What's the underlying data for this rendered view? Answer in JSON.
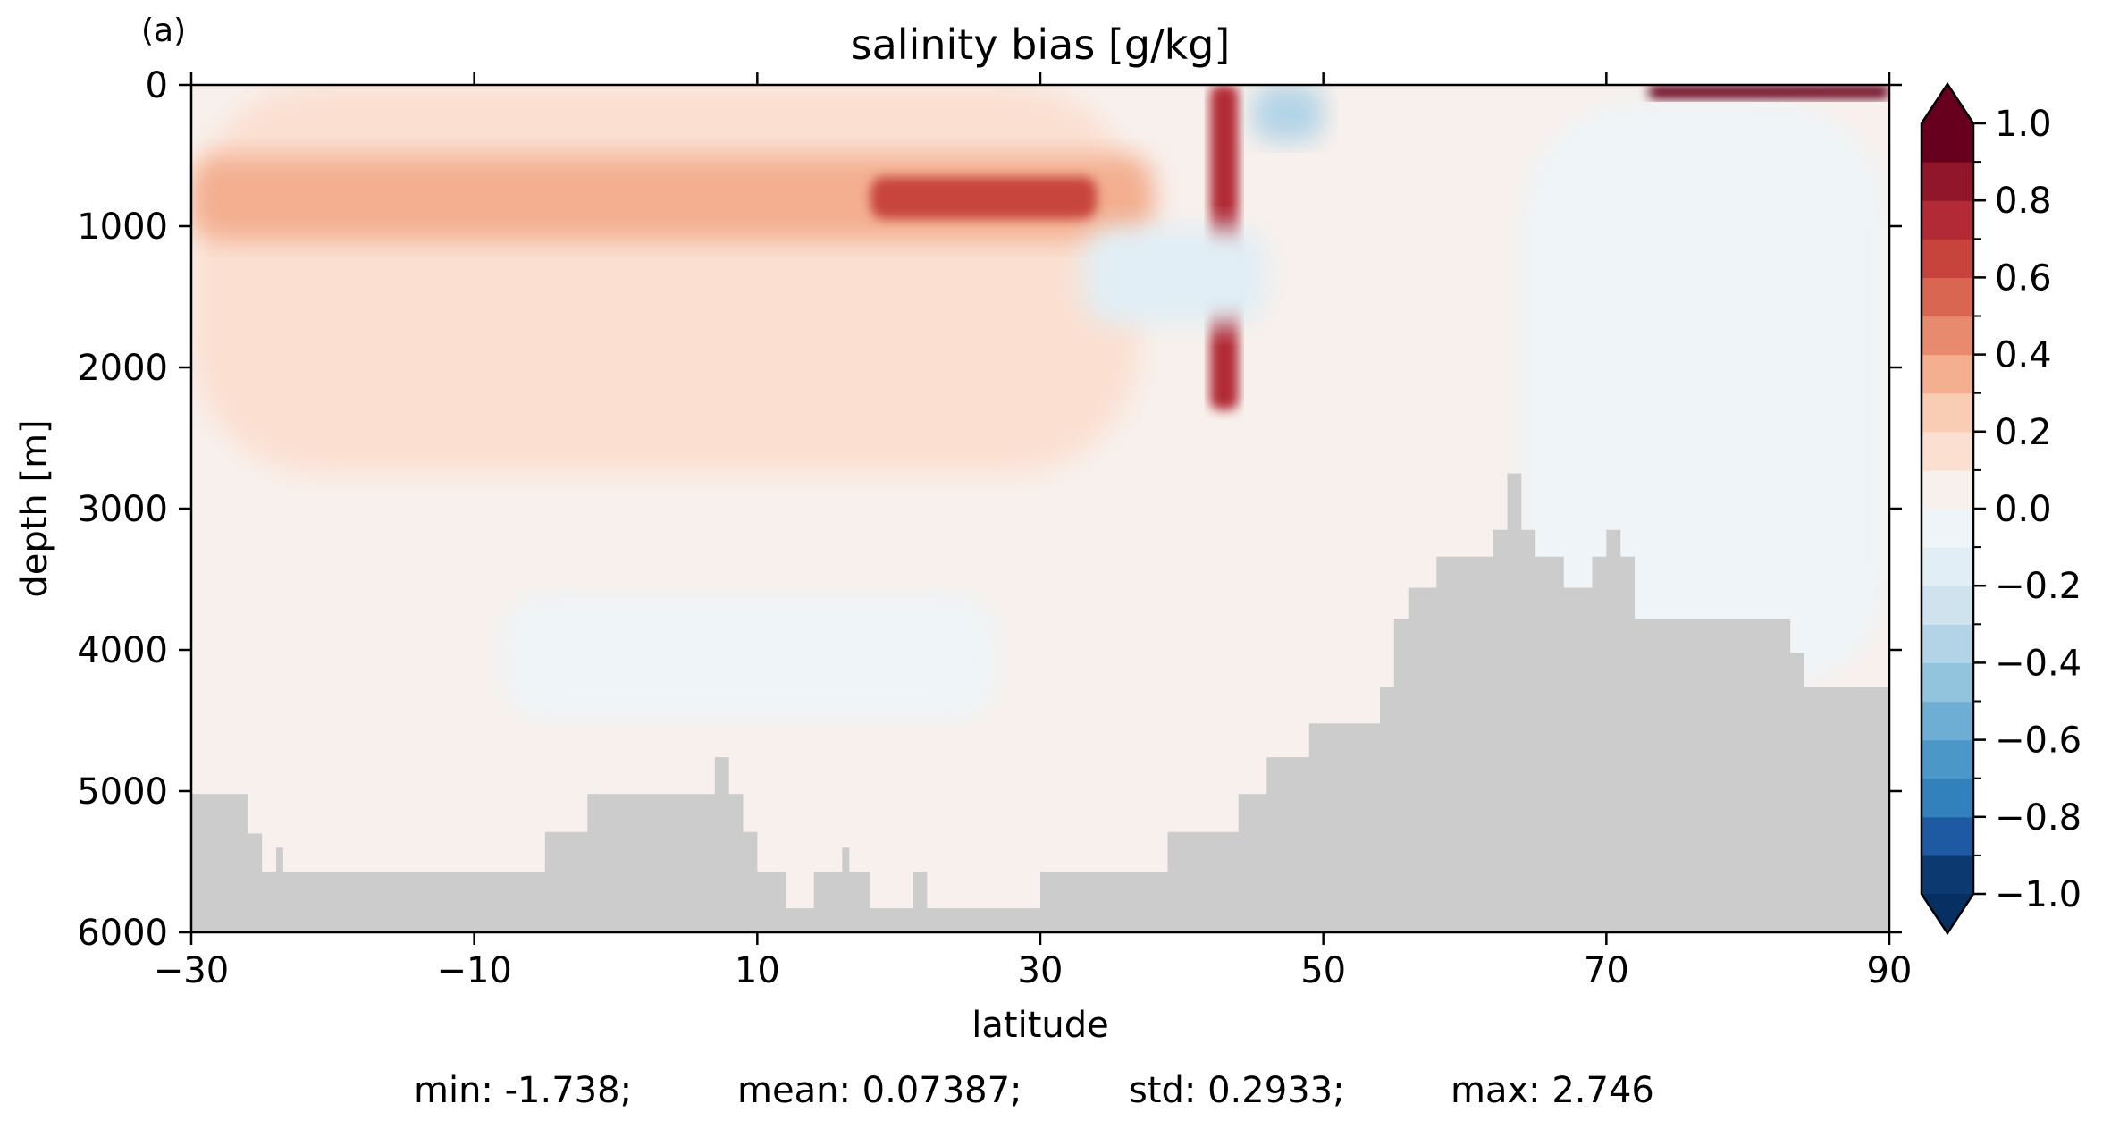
{
  "panel_label": "(a)",
  "chart_data": {
    "type": "heatmap",
    "title": "salinity bias [g/kg]",
    "xlabel": "latitude",
    "ylabel": "depth [m]",
    "xlim": [
      -30,
      90
    ],
    "ylim": [
      6000,
      0
    ],
    "xticks": [
      -30,
      -10,
      10,
      30,
      50,
      70,
      90
    ],
    "yticks": [
      0,
      1000,
      2000,
      3000,
      4000,
      5000,
      6000
    ],
    "xtick_labels": [
      "−30",
      "−10",
      "10",
      "30",
      "50",
      "70",
      "90"
    ],
    "ytick_labels": [
      "0",
      "1000",
      "2000",
      "3000",
      "4000",
      "5000",
      "6000"
    ],
    "colorbar": {
      "min": -1.0,
      "max": 1.0,
      "extend": "both",
      "levels": [
        -1.0,
        -0.9,
        -0.8,
        -0.7,
        -0.6,
        -0.5,
        -0.4,
        -0.3,
        -0.2,
        -0.1,
        0.0,
        0.1,
        0.2,
        0.3,
        0.4,
        0.5,
        0.6,
        0.7,
        0.8,
        0.9,
        1.0
      ],
      "ticks": [
        1.0,
        0.8,
        0.6,
        0.4,
        0.2,
        0.0,
        -0.2,
        -0.4,
        -0.6,
        -0.8,
        -1.0
      ],
      "tick_labels": [
        "1.0",
        "0.8",
        "0.6",
        "0.4",
        "0.2",
        "0.0",
        "−0.2",
        "−0.4",
        "−0.6",
        "−0.8",
        "−1.0"
      ],
      "colors": [
        "#0c3a70",
        "#1d5aa2",
        "#3281bd",
        "#4b98c8",
        "#6eaed4",
        "#93c4de",
        "#b3d4e7",
        "#cfe3ef",
        "#e1eef5",
        "#eef4f7",
        "#f8f0ec",
        "#fbe0d2",
        "#f9ccb4",
        "#f3af90",
        "#e78a6d",
        "#d96650",
        "#c7443d",
        "#b12a35",
        "#921629",
        "#67001f"
      ],
      "over_color": "#67001f",
      "under_color": "#053061"
    },
    "fields": [
      {
        "lat": [
          -30,
          37
        ],
        "depth": [
          0,
          2750
        ],
        "bias": 0.15
      },
      {
        "lat": [
          -30,
          38
        ],
        "depth": [
          500,
          1100
        ],
        "bias": 0.35
      },
      {
        "lat": [
          18,
          34
        ],
        "depth": [
          650,
          950
        ],
        "bias": 0.6
      },
      {
        "lat": [
          42,
          44
        ],
        "depth": [
          0,
          2300
        ],
        "bias": 0.75
      },
      {
        "lat": [
          45,
          50
        ],
        "depth": [
          0,
          400
        ],
        "bias": -0.35
      },
      {
        "lat": [
          33,
          46
        ],
        "depth": [
          1000,
          1700
        ],
        "bias": -0.2
      },
      {
        "lat": [
          64,
          90
        ],
        "depth": [
          100,
          4300
        ],
        "bias": -0.1
      },
      {
        "lat": [
          73,
          90
        ],
        "depth": [
          0,
          100
        ],
        "bias": 1.0
      },
      {
        "lat": [
          -8,
          27
        ],
        "depth": [
          3600,
          4500
        ],
        "bias": -0.05
      }
    ],
    "bathymetry": {
      "lat": [
        -30,
        -26,
        -26,
        -25,
        -25,
        -24,
        -24,
        -23.5,
        -23.5,
        -5,
        -5,
        -2,
        -2,
        7,
        7,
        8,
        8,
        9,
        9,
        10,
        10,
        12,
        12,
        14,
        14,
        16,
        16,
        16.5,
        16.5,
        18,
        18,
        21,
        21,
        22,
        22,
        30,
        30,
        39,
        39,
        44,
        44,
        46,
        46,
        49,
        49,
        54,
        54,
        55,
        55,
        56,
        56,
        58,
        58,
        62,
        62,
        63,
        63,
        64,
        64,
        65,
        65,
        67,
        67,
        69,
        69,
        70,
        70,
        71,
        71,
        72,
        72,
        83,
        83,
        84,
        84,
        90
      ],
      "depth": [
        5020,
        5020,
        5300,
        5300,
        5570,
        5570,
        5400,
        5400,
        5570,
        5570,
        5290,
        5290,
        5020,
        5020,
        4760,
        4760,
        5020,
        5020,
        5290,
        5290,
        5570,
        5570,
        5830,
        5830,
        5570,
        5570,
        5400,
        5400,
        5570,
        5570,
        5830,
        5830,
        5570,
        5570,
        5830,
        5830,
        5570,
        5570,
        5290,
        5290,
        5020,
        5020,
        4760,
        4760,
        4520,
        4520,
        4260,
        4260,
        3780,
        3780,
        3560,
        3560,
        3340,
        3340,
        3150,
        3150,
        2750,
        2750,
        3150,
        3150,
        3340,
        3340,
        3560,
        3560,
        3340,
        3340,
        3150,
        3150,
        3340,
        3340,
        3780,
        3780,
        4020,
        4020,
        4260,
        4260
      ],
      "color": "#cccccc"
    }
  },
  "stats": {
    "min": "min: -1.738;",
    "mean": "mean: 0.07387;",
    "std": "std: 0.2933;",
    "max": "max: 2.746"
  }
}
